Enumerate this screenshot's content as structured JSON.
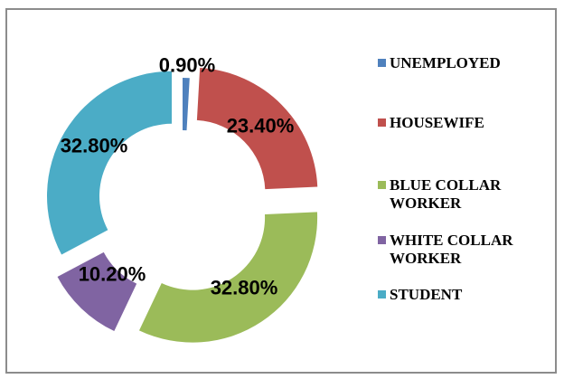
{
  "chart_data": {
    "type": "pie",
    "donut": true,
    "categories": [
      "UNEMPLOYED",
      "HOUSEWIFE",
      "BLUE COLLAR WORKER",
      "WHITE COLLAR WORKER",
      "STUDENT"
    ],
    "legend_lines": [
      [
        "UNEMPLOYED"
      ],
      [
        "HOUSEWIFE"
      ],
      [
        "BLUE COLLAR",
        "WORKER"
      ],
      [
        "WHITE COLLAR",
        "WORKER"
      ],
      [
        "STUDENT"
      ]
    ],
    "values": [
      0.9,
      23.4,
      32.8,
      10.2,
      32.8
    ],
    "data_labels": [
      "0.90%",
      "23.40%",
      "32.80%",
      "10.20%",
      "32.80%"
    ],
    "colors": [
      "#4f81bd",
      "#c0504d",
      "#9bbb59",
      "#8064a2",
      "#4bacc6"
    ],
    "legend_position": "right"
  }
}
